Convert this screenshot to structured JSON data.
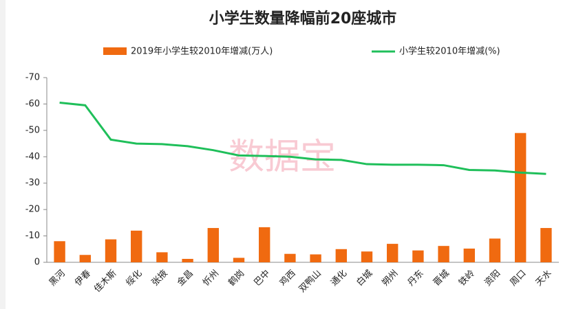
{
  "chart_data": {
    "type": "bar_line",
    "title": "小学生数量降幅前20座城市",
    "watermark": "数据宝",
    "categories": [
      "黑河",
      "伊春",
      "佳木斯",
      "绥化",
      "张掖",
      "金昌",
      "忻州",
      "鹤岗",
      "巴中",
      "鸡西",
      "双鸭山",
      "通化",
      "白城",
      "朔州",
      "丹东",
      "晋城",
      "铁岭",
      "资阳",
      "周口",
      "天水"
    ],
    "series": [
      {
        "name": "2019年小学生较2010年增减(万人)",
        "type": "bar",
        "color": "#f06a10",
        "values": [
          -8,
          -2.8,
          -8.7,
          -12,
          -3.8,
          -1.3,
          -13,
          -1.7,
          -13.3,
          -3.2,
          -3,
          -5,
          -4.1,
          -7,
          -4.5,
          -6.2,
          -5.2,
          -9,
          -49,
          -13
        ]
      },
      {
        "name": "小学生较2010年增减(%)",
        "type": "line",
        "color": "#1fbf5a",
        "values": [
          -60.5,
          -59.5,
          -46.5,
          -45,
          -44.8,
          -44,
          -42.5,
          -40.5,
          -40.3,
          -40,
          -39,
          -38.8,
          -37.2,
          -37,
          -37,
          -36.8,
          -35,
          -34.8,
          -34,
          -33.5
        ]
      }
    ],
    "ylim": [
      0,
      -70
    ],
    "yticks": [
      0,
      -10,
      -20,
      -30,
      -40,
      -50,
      -60,
      -70
    ],
    "legend": "top"
  }
}
